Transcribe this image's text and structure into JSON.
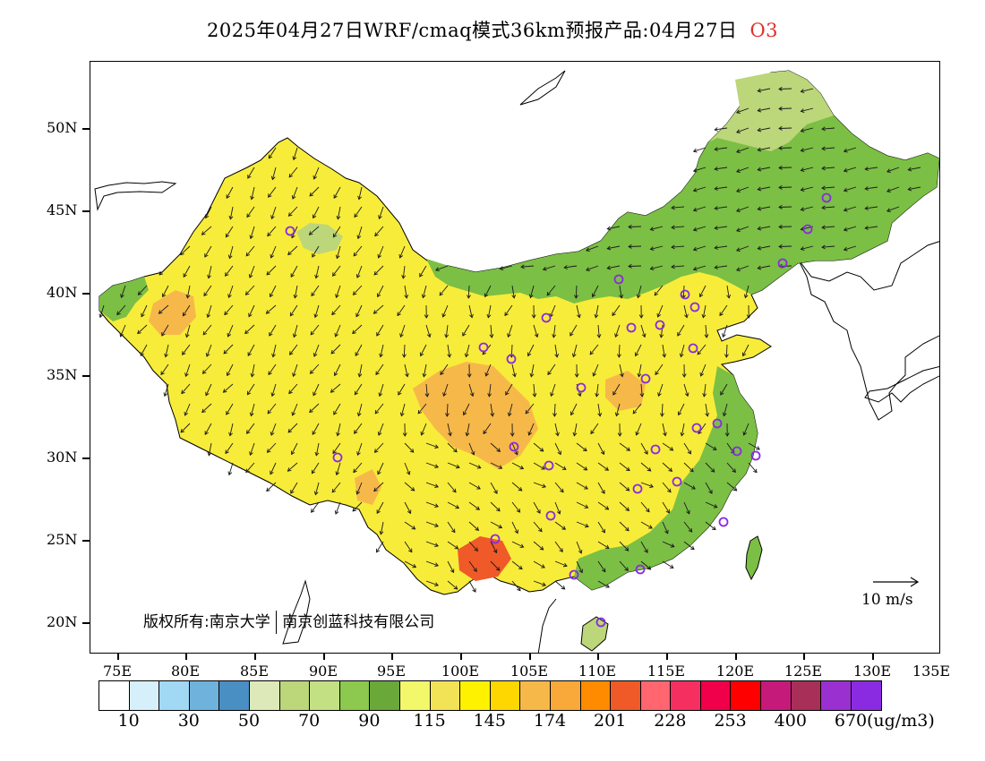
{
  "title": {
    "main": "2025年04月27日WRF/cmaq模式36km预报产品:04月27日",
    "pollutant": "O3"
  },
  "colors": {
    "pollutant_title": "#e0302a",
    "station_marker": "#8a2be2",
    "wind_arrow": "#1a1a1a"
  },
  "map": {
    "y_axis_labels": [
      "50N",
      "45N",
      "40N",
      "35N",
      "30N",
      "25N",
      "20N"
    ],
    "x_axis_labels": [
      "75E",
      "80E",
      "85E",
      "90E",
      "95E",
      "100E",
      "105E",
      "110E",
      "115E",
      "120E",
      "125E",
      "130E",
      "135E"
    ],
    "copyright_left": "版权所有:南京大学",
    "copyright_right": "南京创蓝科技有限公司",
    "wind_reference": "10 m/s"
  },
  "colorbar": {
    "colors": [
      "#ffffff",
      "#d6f0fb",
      "#a1d9f4",
      "#6fb3dd",
      "#4a8fc4",
      "#dde9b8",
      "#bcd67a",
      "#c3e083",
      "#8cc94e",
      "#6aa83a",
      "#f3f76a",
      "#f2e356",
      "#fff200",
      "#ffd700",
      "#f7b84a",
      "#f8a93a",
      "#ff8c00",
      "#f05a28",
      "#ff6670",
      "#f53060",
      "#f0004a",
      "#ff0000",
      "#c61a7a",
      "#a83058",
      "#9b30d0",
      "#8a2be2"
    ],
    "labels": [
      "10",
      "30",
      "50",
      "70",
      "90",
      "115",
      "145",
      "174",
      "201",
      "228",
      "253",
      "400",
      "670"
    ],
    "unit": "(ug/m3)"
  }
}
